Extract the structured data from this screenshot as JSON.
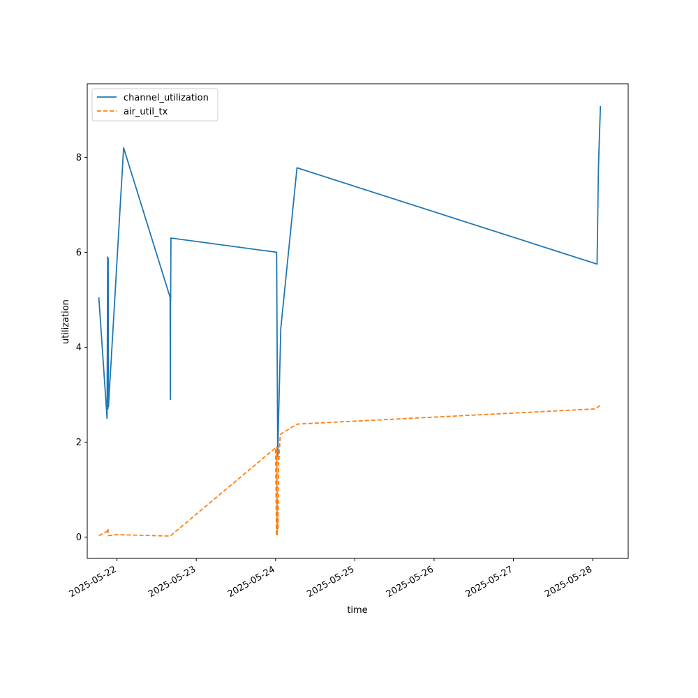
{
  "chart_data": {
    "type": "line",
    "title": "",
    "xlabel": "time",
    "ylabel": "utilization",
    "x_tick_labels": [
      "2025-05-22",
      "2025-05-23",
      "2025-05-24",
      "2025-05-25",
      "2025-05-26",
      "2025-05-27",
      "2025-05-28"
    ],
    "y_tick_labels": [
      "0",
      "2",
      "4",
      "6",
      "8"
    ],
    "y_ticks": [
      0,
      2,
      4,
      6,
      8
    ],
    "xlim": [
      "2025-05-21 15:00",
      "2025-05-28 10:45"
    ],
    "ylim": [
      -0.45,
      9.55
    ],
    "grid": false,
    "legend_position": "upper left",
    "series": [
      {
        "name": "channel_utilization",
        "color": "#1f77b4",
        "style": "solid",
        "x": [
          "2025-05-21 18:30",
          "2025-05-21 21:00",
          "2025-05-21 21:10",
          "2025-05-21 21:15",
          "2025-05-21 21:20",
          "2025-05-21 21:25",
          "2025-05-22 02:00",
          "2025-05-22 16:05",
          "2025-05-22 16:10",
          "2025-05-22 16:12",
          "2025-05-22 16:15",
          "2025-05-22 16:20",
          "2025-05-24 00:20",
          "2025-05-24 00:40",
          "2025-05-24 00:55",
          "2025-05-24 01:35",
          "2025-05-24 06:30",
          "2025-05-28 01:20",
          "2025-05-28 01:45",
          "2025-05-28 02:20"
        ],
        "y": [
          5.05,
          2.5,
          5.9,
          2.7,
          5.88,
          2.75,
          8.2,
          5.05,
          2.9,
          4.95,
          5.0,
          6.3,
          6.0,
          1.7,
          2.5,
          4.4,
          7.78,
          5.75,
          7.8,
          9.08
        ]
      },
      {
        "name": "air_util_tx",
        "color": "#ff7f0e",
        "style": "dashed",
        "x": [
          "2025-05-21 18:30",
          "2025-05-21 21:00",
          "2025-05-21 21:15",
          "2025-05-21 21:25",
          "2025-05-22 00:00",
          "2025-05-22 16:05",
          "2025-05-22 16:15",
          "2025-05-24 00:00",
          "2025-05-24 00:15",
          "2025-05-24 00:25",
          "2025-05-24 00:30",
          "2025-05-24 00:40",
          "2025-05-24 00:45",
          "2025-05-24 00:55",
          "2025-05-24 01:00",
          "2025-05-24 01:25",
          "2025-05-24 01:35",
          "2025-05-24 06:30",
          "2025-05-28 00:50",
          "2025-05-28 02:20"
        ],
        "y": [
          0.03,
          0.12,
          0.18,
          0.03,
          0.05,
          0.02,
          0.03,
          1.88,
          0.02,
          1.9,
          0.05,
          0.75,
          0.15,
          1.8,
          1.6,
          2.15,
          2.17,
          2.38,
          2.7,
          2.78
        ]
      }
    ]
  }
}
